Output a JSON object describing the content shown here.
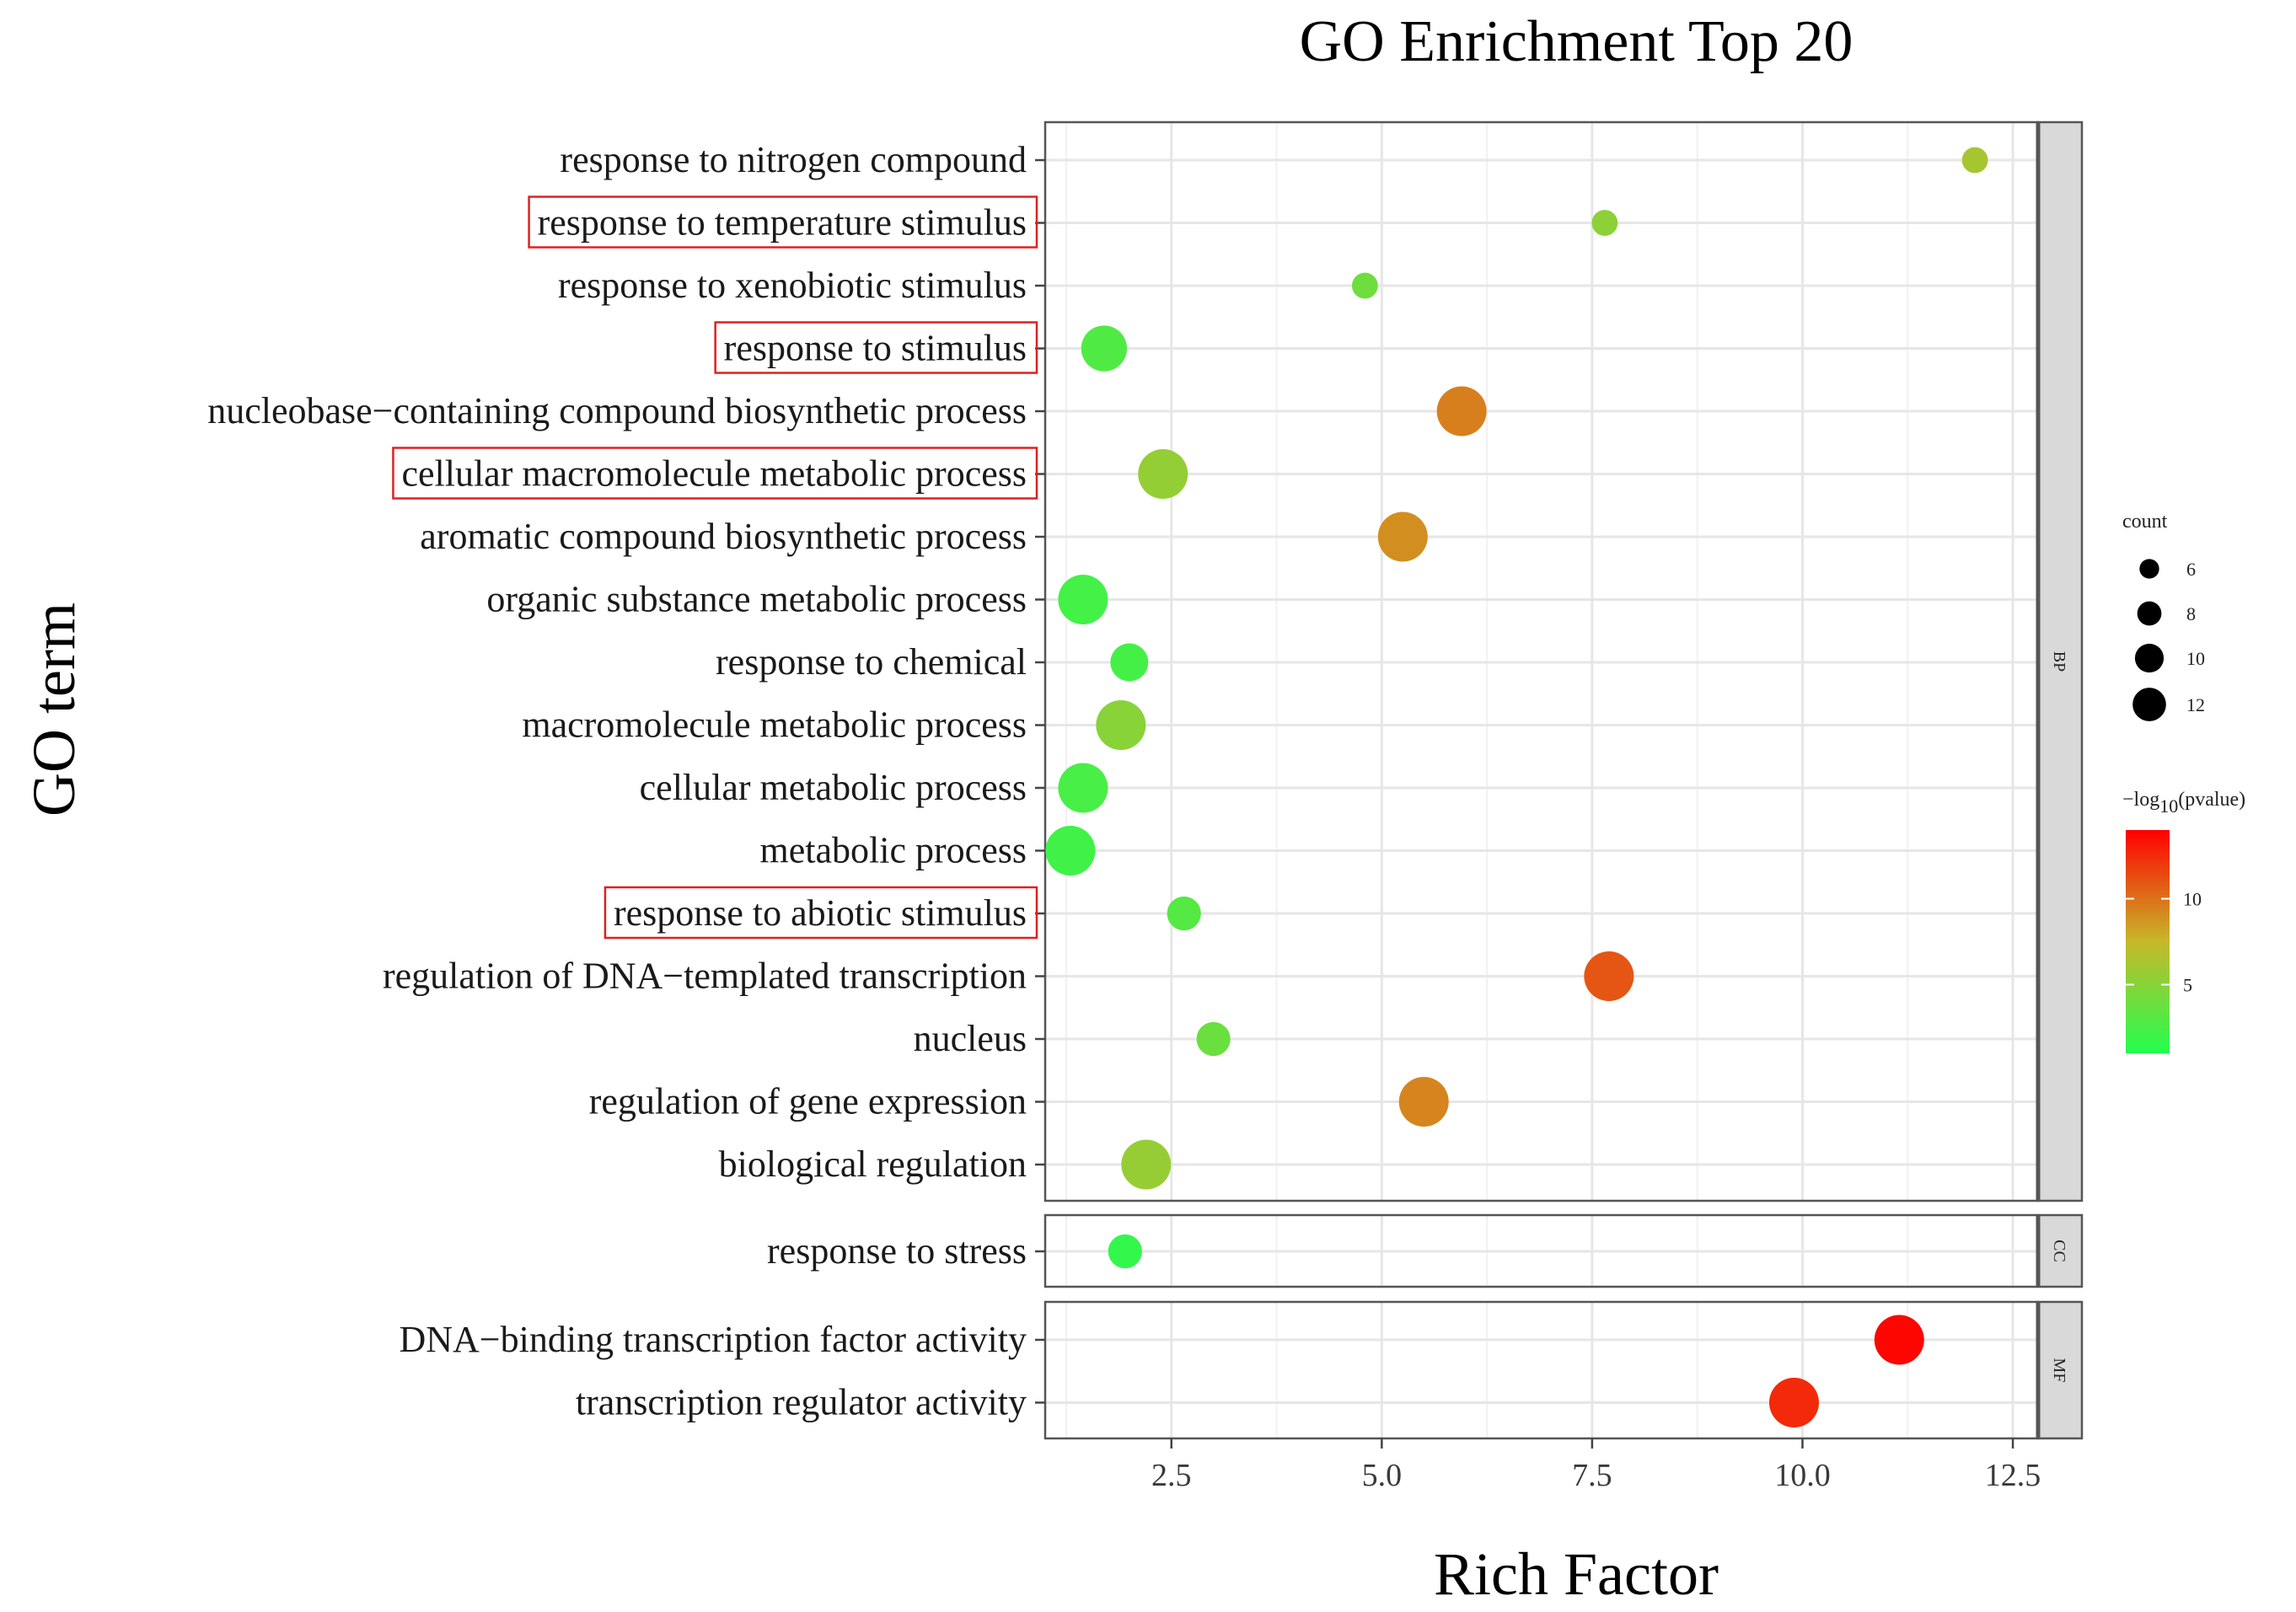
{
  "chart_data": {
    "type": "scatter",
    "title": "GO Enrichment Top 20",
    "xlabel": "Rich Factor",
    "ylabel": "GO term",
    "xlim": [
      1.0,
      12.8
    ],
    "xticks": [
      "2.5",
      "5.0",
      "7.5",
      "10.0",
      "12.5"
    ],
    "grid": true,
    "facets": [
      "BP",
      "CC",
      "MF"
    ],
    "size_legend": {
      "title": "count",
      "values": [
        "6",
        "8",
        "10",
        "12"
      ]
    },
    "color_legend": {
      "title_main": "−log",
      "title_sub": "10",
      "title_tail": "(pvalue)",
      "ticks": [
        "10",
        "5"
      ],
      "low_color": "#22ff4e",
      "mid_color": "#c6b82a",
      "high_color": "#ff0000"
    },
    "series": [
      {
        "term": "response to nitrogen compound",
        "facet": "BP",
        "rich_factor": 12.05,
        "count": 4,
        "neg_log10_pvalue": 6.2,
        "highlighted": false
      },
      {
        "term": "response to temperature stimulus",
        "facet": "BP",
        "rich_factor": 7.65,
        "count": 4,
        "neg_log10_pvalue": 5.2,
        "highlighted": true
      },
      {
        "term": "response to xenobiotic stimulus",
        "facet": "BP",
        "rich_factor": 4.8,
        "count": 4,
        "neg_log10_pvalue": 4.0,
        "highlighted": false
      },
      {
        "term": "response to stimulus",
        "facet": "BP",
        "rich_factor": 1.7,
        "count": 9,
        "neg_log10_pvalue": 2.8,
        "highlighted": true
      },
      {
        "term": "nucleobase−containing compound biosynthetic process",
        "facet": "BP",
        "rich_factor": 5.95,
        "count": 10,
        "neg_log10_pvalue": 9.5,
        "highlighted": false
      },
      {
        "term": "cellular macromolecule metabolic process",
        "facet": "BP",
        "rich_factor": 2.4,
        "count": 10,
        "neg_log10_pvalue": 5.5,
        "highlighted": true
      },
      {
        "term": "aromatic compound biosynthetic process",
        "facet": "BP",
        "rich_factor": 5.25,
        "count": 10,
        "neg_log10_pvalue": 9.0,
        "highlighted": false
      },
      {
        "term": "organic substance metabolic process",
        "facet": "BP",
        "rich_factor": 1.45,
        "count": 10,
        "neg_log10_pvalue": 2.3,
        "highlighted": false
      },
      {
        "term": "response to chemical",
        "facet": "BP",
        "rich_factor": 2.0,
        "count": 7,
        "neg_log10_pvalue": 2.4,
        "highlighted": false
      },
      {
        "term": "macromolecule metabolic process",
        "facet": "BP",
        "rich_factor": 1.9,
        "count": 10,
        "neg_log10_pvalue": 5.0,
        "highlighted": false
      },
      {
        "term": "cellular metabolic process",
        "facet": "BP",
        "rich_factor": 1.45,
        "count": 10,
        "neg_log10_pvalue": 2.5,
        "highlighted": false
      },
      {
        "term": "metabolic process",
        "facet": "BP",
        "rich_factor": 1.3,
        "count": 10,
        "neg_log10_pvalue": 2.2,
        "highlighted": false
      },
      {
        "term": "response to abiotic stimulus",
        "facet": "BP",
        "rich_factor": 2.65,
        "count": 6,
        "neg_log10_pvalue": 3.0,
        "highlighted": true
      },
      {
        "term": "regulation of DNA−templated transcription",
        "facet": "BP",
        "rich_factor": 7.7,
        "count": 10,
        "neg_log10_pvalue": 11.0,
        "highlighted": false
      },
      {
        "term": "nucleus",
        "facet": "BP",
        "rich_factor": 3.0,
        "count": 6,
        "neg_log10_pvalue": 3.8,
        "highlighted": false
      },
      {
        "term": "regulation of gene expression",
        "facet": "BP",
        "rich_factor": 5.5,
        "count": 10,
        "neg_log10_pvalue": 9.3,
        "highlighted": false
      },
      {
        "term": "biological regulation",
        "facet": "BP",
        "rich_factor": 2.2,
        "count": 10,
        "neg_log10_pvalue": 5.6,
        "highlighted": false
      },
      {
        "term": "response to stress",
        "facet": "CC",
        "rich_factor": 1.95,
        "count": 6,
        "neg_log10_pvalue": 1.6,
        "highlighted": false
      },
      {
        "term": "DNA−binding transcription factor activity",
        "facet": "MF",
        "rich_factor": 11.15,
        "count": 10,
        "neg_log10_pvalue": 13.8,
        "highlighted": false
      },
      {
        "term": "transcription regulator activity",
        "facet": "MF",
        "rich_factor": 9.9,
        "count": 10,
        "neg_log10_pvalue": 12.5,
        "highlighted": false
      }
    ]
  }
}
